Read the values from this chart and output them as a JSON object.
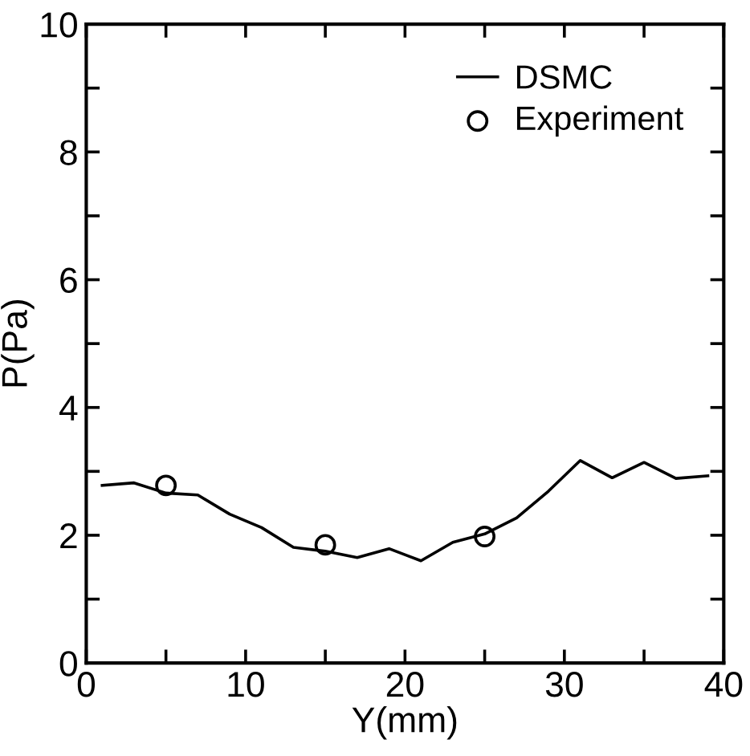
{
  "chart_data": {
    "type": "line",
    "xlabel": "Y(mm)",
    "ylabel": "P(Pa)",
    "xlim": [
      0,
      40
    ],
    "ylim": [
      0,
      10
    ],
    "xticks": [
      0,
      {
        "value": 5,
        "label": null
      },
      10,
      {
        "value": 15,
        "label": null
      },
      20,
      {
        "value": 25,
        "label": null
      },
      30,
      {
        "value": 35,
        "label": null
      },
      40
    ],
    "yticks": [
      0,
      {
        "value": 1,
        "label": null
      },
      2,
      {
        "value": 3,
        "label": null
      },
      4,
      {
        "value": 5,
        "label": null
      },
      6,
      {
        "value": 7,
        "label": null
      },
      8,
      {
        "value": 9,
        "label": null
      },
      10
    ],
    "grid": false,
    "legend": "top right",
    "series": [
      {
        "name": "DSMC",
        "color": "#000000",
        "marker": "none",
        "x": [
          1,
          3,
          5,
          7,
          9,
          11,
          13,
          15,
          17,
          19,
          21,
          23,
          25,
          27,
          29,
          31,
          33,
          35,
          37,
          39
        ],
        "values": [
          2.78,
          2.82,
          2.66,
          2.63,
          2.33,
          2.12,
          1.81,
          1.75,
          1.65,
          1.79,
          1.6,
          1.89,
          2.02,
          2.27,
          2.69,
          3.17,
          2.9,
          3.14,
          2.89,
          2.93
        ]
      },
      {
        "name": "Experiment",
        "type": "scatter",
        "color": "#000000",
        "marker": "circle",
        "x": [
          5,
          15,
          25
        ],
        "values": [
          2.78,
          1.85,
          1.98
        ]
      }
    ]
  }
}
